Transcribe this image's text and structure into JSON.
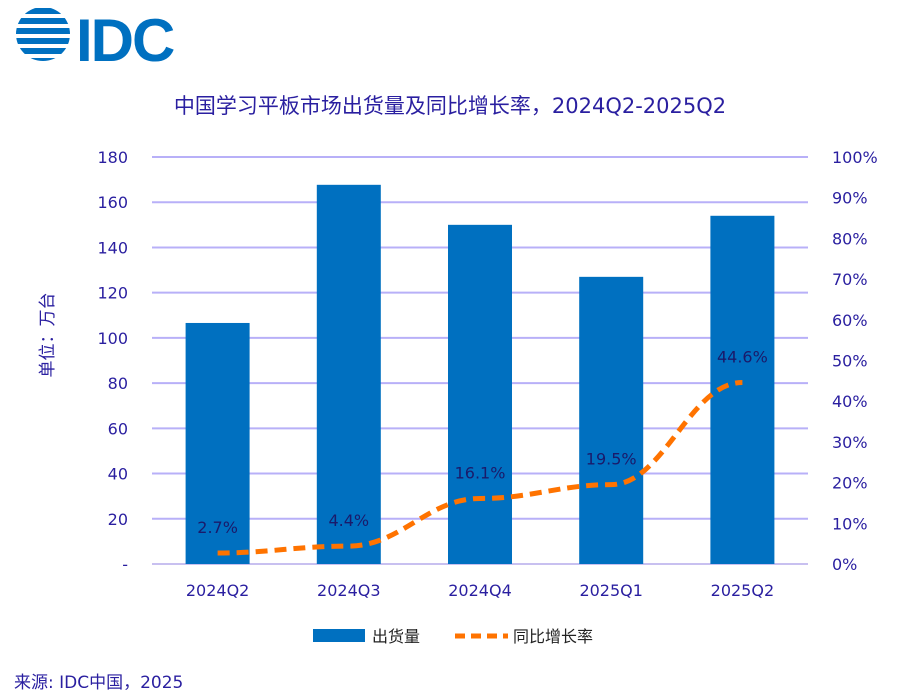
{
  "logo": {
    "text": "IDC",
    "color": "#0070c0"
  },
  "source": "来源: IDC中国，2025",
  "chart_data": {
    "type": "bar+line",
    "title": "中国学习平板市场出货量及同比增长率，2024Q2-2025Q2",
    "ylabel": "单位：万台",
    "categories": [
      "2024Q2",
      "2024Q3",
      "2024Q4",
      "2025Q1",
      "2025Q2"
    ],
    "y_ticks": [
      "-",
      "20",
      "40",
      "60",
      "80",
      "100",
      "120",
      "140",
      "160",
      "180"
    ],
    "y2_ticks": [
      "0%",
      "10%",
      "20%",
      "30%",
      "40%",
      "50%",
      "60%",
      "70%",
      "80%",
      "90%",
      "100%"
    ],
    "ylim": [
      0,
      180
    ],
    "y2lim": [
      0,
      100
    ],
    "grid": true,
    "legend_position": "bottom",
    "series": [
      {
        "name": "出货量",
        "type": "bar",
        "axis": "left",
        "color": "#0070c0",
        "values": [
          106.6,
          167.7,
          150.0,
          127.0,
          154.0
        ]
      },
      {
        "name": "同比增长率",
        "type": "line",
        "style": "dashed",
        "axis": "right",
        "color": "#ff7300",
        "values": [
          2.7,
          4.4,
          16.1,
          19.5,
          44.6
        ],
        "labels": [
          "2.7%",
          "4.4%",
          "16.1%",
          "19.5%",
          "44.6%"
        ]
      }
    ]
  }
}
